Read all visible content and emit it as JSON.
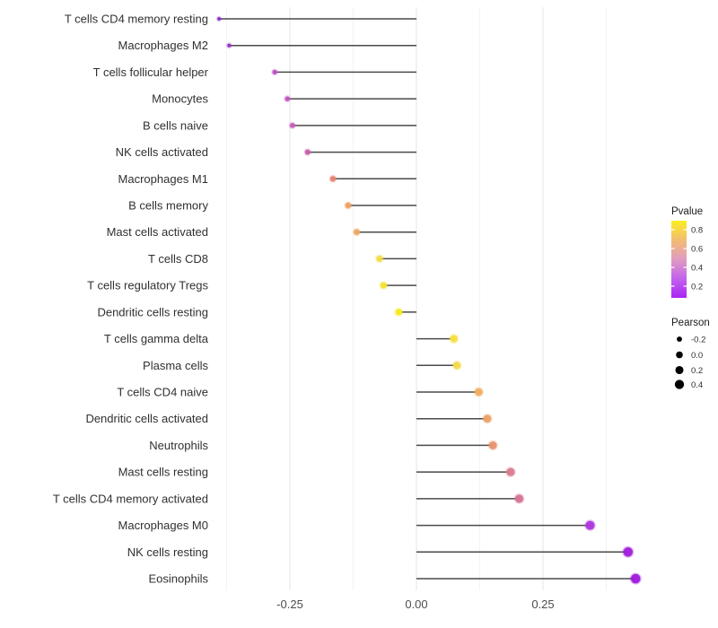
{
  "chart_data": {
    "type": "lollipop",
    "title": "",
    "xlabel": "",
    "ylabel": "",
    "x_axis": {
      "tick_labels": [
        "-0.25",
        "0.00",
        "0.25"
      ],
      "tick_values": [
        -0.25,
        0.0,
        0.25
      ],
      "minor_grid_values": [
        -0.375,
        -0.125,
        0.125,
        0.375
      ],
      "xlim": [
        -0.4,
        0.45
      ]
    },
    "grid": "on",
    "zero_baseline": 0.0,
    "rows": [
      {
        "label": "T cells CD4 memory resting",
        "pearson": -0.39,
        "point_color": "#8820c8"
      },
      {
        "label": "Macrophages M2",
        "pearson": -0.37,
        "point_color": "#9028c8"
      },
      {
        "label": "T cells follicular helper",
        "pearson": -0.28,
        "point_color": "#bc4ec6"
      },
      {
        "label": "Monocytes",
        "pearson": -0.255,
        "point_color": "#c254c0"
      },
      {
        "label": "B cells naive",
        "pearson": -0.245,
        "point_color": "#c559be"
      },
      {
        "label": "NK cells activated",
        "pearson": -0.215,
        "point_color": "#c75fab"
      },
      {
        "label": "Macrophages M1",
        "pearson": -0.165,
        "point_color": "#e2846f"
      },
      {
        "label": "B cells memory",
        "pearson": -0.135,
        "point_color": "#eca263"
      },
      {
        "label": "Mast cells activated",
        "pearson": -0.118,
        "point_color": "#eda961"
      },
      {
        "label": "T cells CD8",
        "pearson": -0.073,
        "point_color": "#f3dc45"
      },
      {
        "label": "T cells regulatory  Tregs",
        "pearson": -0.065,
        "point_color": "#f6e233"
      },
      {
        "label": "Dendritic cells resting",
        "pearson": -0.035,
        "point_color": "#f9e922"
      },
      {
        "label": "T cells gamma delta",
        "pearson": 0.074,
        "point_color": "#f5e040"
      },
      {
        "label": "Plasma cells",
        "pearson": 0.08,
        "point_color": "#f3da4b"
      },
      {
        "label": "T cells CD4 naive",
        "pearson": 0.123,
        "point_color": "#efae5e"
      },
      {
        "label": "Dendritic cells activated",
        "pearson": 0.14,
        "point_color": "#eca067"
      },
      {
        "label": "Neutrophils",
        "pearson": 0.151,
        "point_color": "#e7946f"
      },
      {
        "label": "Mast cells resting",
        "pearson": 0.186,
        "point_color": "#da7b8e"
      },
      {
        "label": "T cells CD4 memory activated",
        "pearson": 0.203,
        "point_color": "#d57492"
      },
      {
        "label": "Macrophages M0",
        "pearson": 0.343,
        "point_color": "#ac35dc"
      },
      {
        "label": "NK cells resting",
        "pearson": 0.418,
        "point_color": "#a21edc"
      },
      {
        "label": "Eosinophils",
        "pearson": 0.433,
        "point_color": "#a01bdc"
      }
    ],
    "legend_color": {
      "title": "Pvalue",
      "tick_labels": [
        "0.8",
        "0.6",
        "0.4",
        "0.2"
      ],
      "gradient_top_to_bottom": [
        "#faee21",
        "#f3bc72",
        "#e09cc0",
        "#c263ec",
        "#a826f2"
      ]
    },
    "legend_size": {
      "title": "Pearson",
      "items": [
        {
          "label": "-0.2",
          "pearson": -0.2
        },
        {
          "label": "0.0",
          "pearson": 0.0
        },
        {
          "label": "0.2",
          "pearson": 0.2
        },
        {
          "label": "0.4",
          "pearson": 0.4
        }
      ],
      "dot_color": "#000000"
    },
    "style": {
      "stem_color": "#4a4a4a",
      "major_grid_color": "#e4e4e4",
      "minor_grid_color": "#f2f2f2",
      "background": "#ffffff"
    }
  }
}
